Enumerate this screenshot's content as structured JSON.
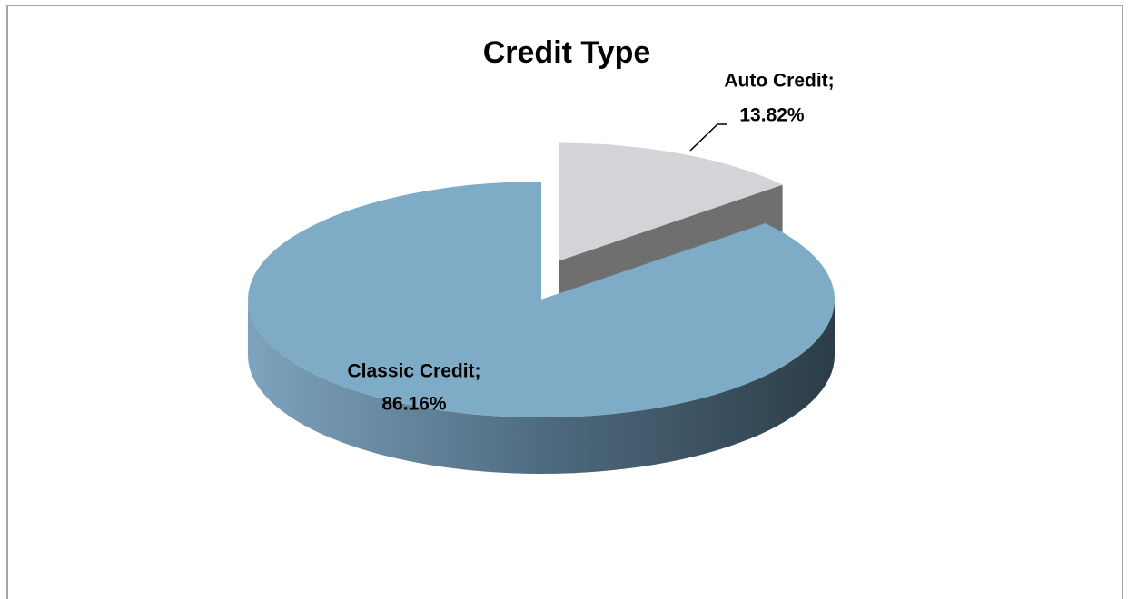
{
  "chart_data": {
    "type": "pie3d",
    "title": "Credit Type",
    "categories": [
      "Classic Credit;",
      "Auto Credit;"
    ],
    "values": [
      86.16,
      13.82
    ],
    "value_labels": [
      "86.16%",
      "13.82%"
    ],
    "colors": [
      "#7eabc5",
      "#d3d4d8"
    ]
  }
}
